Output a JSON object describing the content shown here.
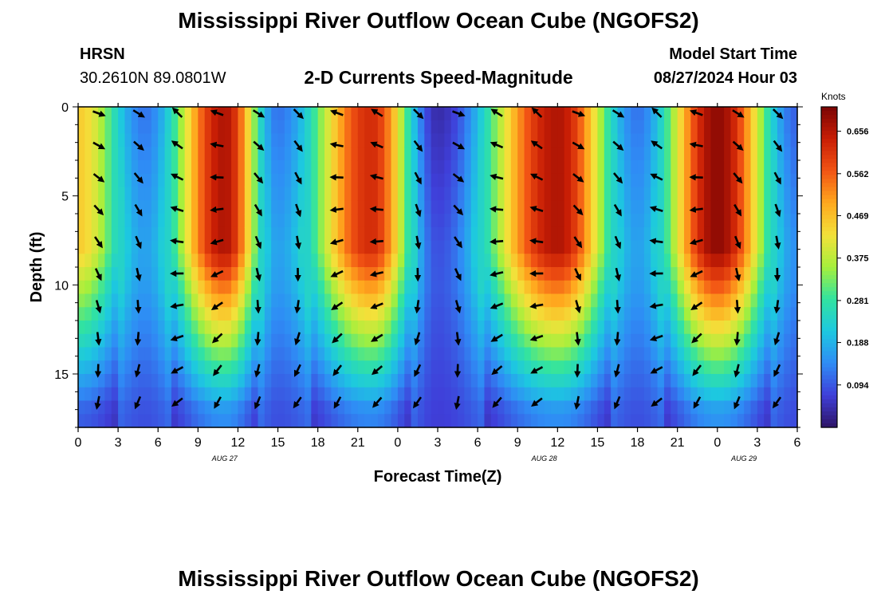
{
  "page": {
    "title": "Mississippi River Outflow Ocean Cube (NGOFS2)",
    "footer_title": "Mississippi River Outflow Ocean Cube (NGOFS2)"
  },
  "station": {
    "name": "HRSN",
    "coords": "30.2610N  89.0801W"
  },
  "model": {
    "label": "Model Start Time",
    "start": "08/27/2024 Hour 03"
  },
  "chart_data": {
    "type": "heatmap",
    "title": "2-D Currents Speed-Magnitude",
    "xlabel": "Forecast Time(Z)",
    "ylabel": "Depth (ft)",
    "x_range_hours": [
      0,
      54
    ],
    "ylim": [
      0,
      18
    ],
    "x_ticks": [
      "0",
      "3",
      "6",
      "9",
      "12",
      "15",
      "18",
      "21",
      "0",
      "3",
      "6",
      "9",
      "12",
      "15",
      "18",
      "21",
      "0",
      "3",
      "6"
    ],
    "y_ticks": [
      "0",
      "5",
      "10",
      "15"
    ],
    "y_tick_values": [
      0,
      5,
      10,
      15
    ],
    "date_labels": [
      {
        "text": "AUG 27",
        "hour": 11
      },
      {
        "text": "AUG 28",
        "hour": 35
      },
      {
        "text": "AUG 29",
        "hour": 50
      }
    ],
    "colorbar": {
      "title": "Knots",
      "ticks": [
        "0.656",
        "0.562",
        "0.469",
        "0.375",
        "0.281",
        "0.188",
        "0.094"
      ],
      "tick_values": [
        0.656,
        0.562,
        0.469,
        0.375,
        0.281,
        0.188,
        0.094
      ],
      "min": 0.0,
      "max": 0.71,
      "colors": [
        "#2e1466",
        "#3f3fd9",
        "#2f8cf5",
        "#1dc8e0",
        "#32e3a0",
        "#a6ef3c",
        "#f3e13a",
        "#ffa81e",
        "#f25414",
        "#c81e05",
        "#7a0404"
      ]
    },
    "speed_peaks": [
      {
        "hour": 0,
        "speed": 0.45
      },
      {
        "hour": 11,
        "speed": 0.66
      },
      {
        "hour": 22,
        "speed": 0.62
      },
      {
        "hour": 36,
        "speed": 0.66
      },
      {
        "hour": 48,
        "speed": 0.69
      }
    ],
    "speed_troughs": [
      {
        "hour": 5,
        "speed": 0.12
      },
      {
        "hour": 15,
        "speed": 0.12
      },
      {
        "hour": 27,
        "speed": 0.04
      },
      {
        "hour": 42,
        "speed": 0.12
      },
      {
        "hour": 54,
        "speed": 0.1
      }
    ]
  }
}
